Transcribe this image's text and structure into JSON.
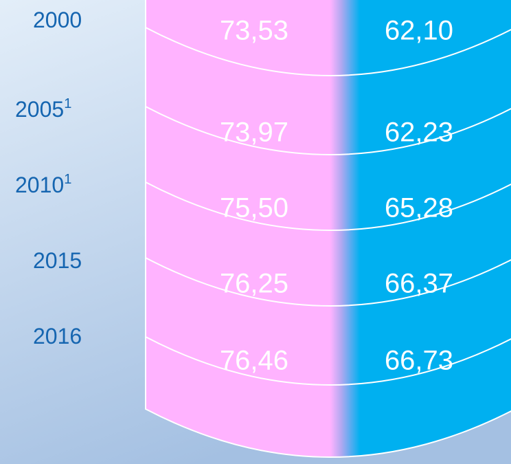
{
  "table": {
    "rows": [
      {
        "year": "2000",
        "female": "73,53",
        "male": "62,10"
      },
      {
        "year": "2005",
        "note": "1",
        "female": "73,97",
        "male": "62,23"
      },
      {
        "year": "2010",
        "note": "1",
        "female": "75,50",
        "male": "65,28"
      },
      {
        "year": "2015",
        "female": "76,25",
        "male": "66,37"
      },
      {
        "year": "2016",
        "female": "76,46",
        "male": "66,73"
      }
    ]
  }
}
